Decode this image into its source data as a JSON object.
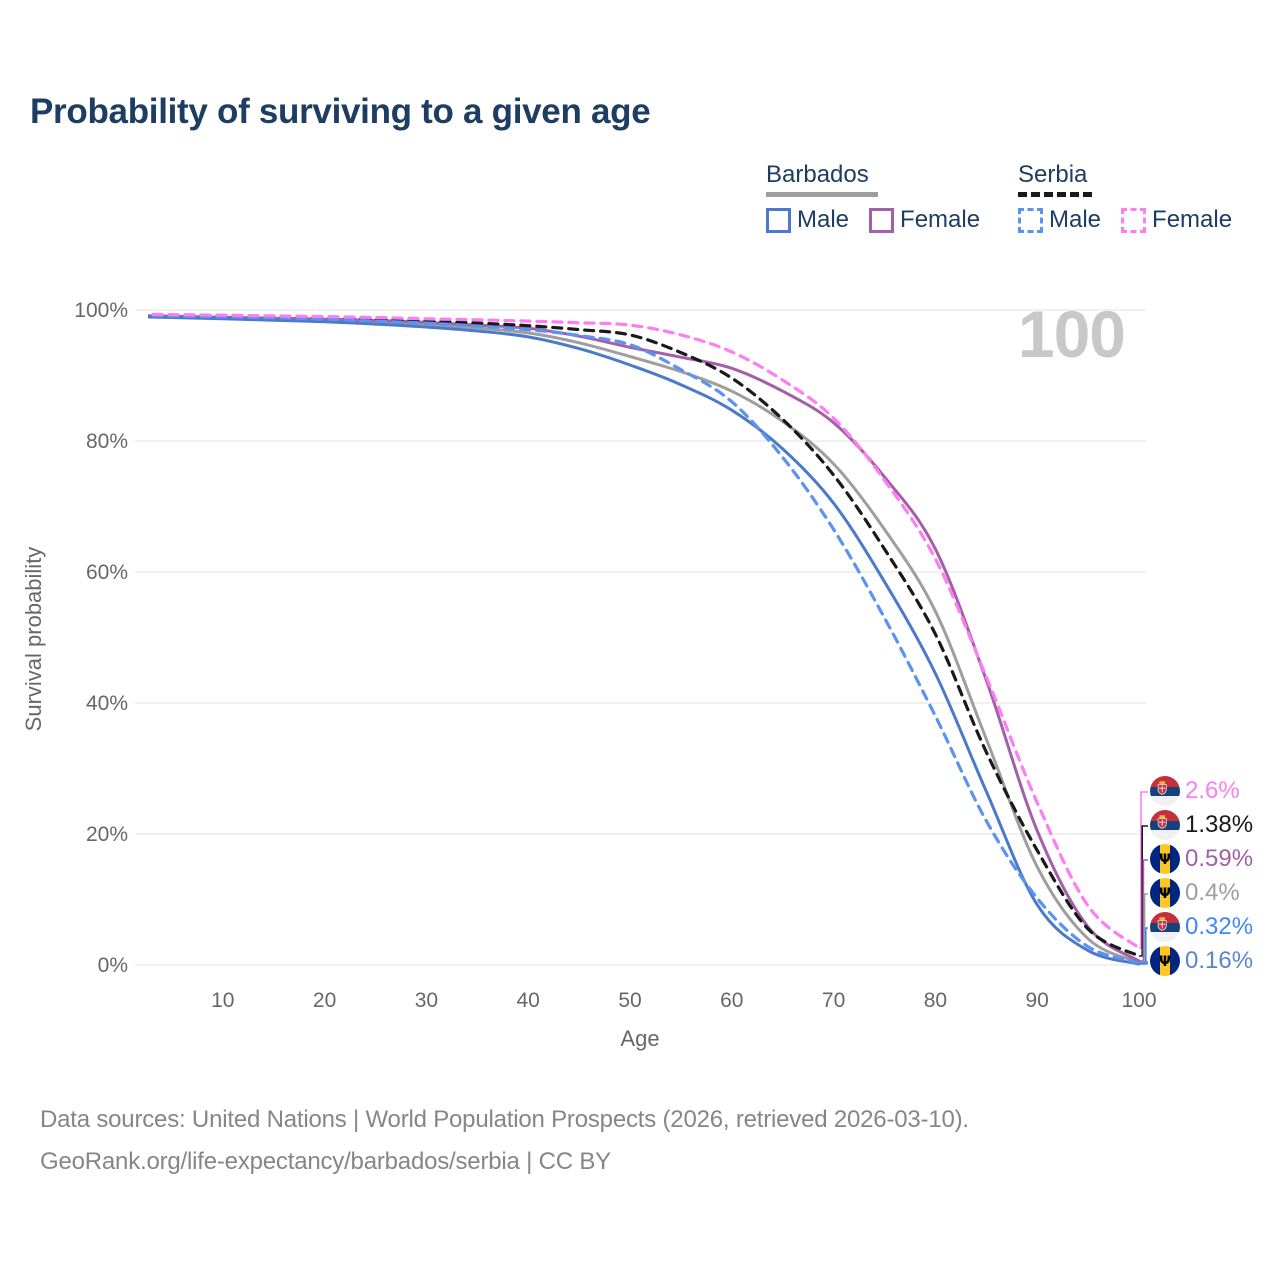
{
  "header": {
    "title": "Probability of surviving to a given age"
  },
  "legend": {
    "groups": [
      {
        "label": "Barbados",
        "line_style": "solid",
        "line_color": "#9e9e9e",
        "items": [
          {
            "label": "Male",
            "color": "#4a7ac9"
          },
          {
            "label": "Female",
            "color": "#a35fa8"
          }
        ]
      },
      {
        "label": "Serbia",
        "line_style": "dashed",
        "line_color": "#1a1a1a",
        "items": [
          {
            "label": "Male",
            "color": "#5c92f2"
          },
          {
            "label": "Female",
            "color": "#ff7df2"
          }
        ]
      }
    ]
  },
  "plot": {
    "age_indicator": "100",
    "ylabel": "Survival probability",
    "xlabel": "Age",
    "y_ticks": [
      "100%",
      "80%",
      "60%",
      "40%",
      "20%",
      "0%"
    ],
    "x_ticks": [
      "10",
      "20",
      "30",
      "40",
      "50",
      "60",
      "70",
      "80",
      "90",
      "100"
    ],
    "grid_color": "#e8e8e8"
  },
  "chart_data": {
    "type": "line",
    "title": "Probability of surviving to a given age",
    "xlabel": "Age",
    "ylabel": "Survival probability",
    "unit": "%",
    "xlim": [
      0,
      100
    ],
    "ylim": [
      0,
      100
    ],
    "grid": true,
    "legend_position": "top-right",
    "series": [
      {
        "id": "barbados_all",
        "name": "Barbados",
        "country": "Barbados",
        "sex": "all",
        "color": "#9e9e9e",
        "dash": false,
        "points": [
          [
            0,
            99.1
          ],
          [
            5,
            98.95
          ],
          [
            10,
            98.78
          ],
          [
            15,
            98.6
          ],
          [
            20,
            98.4
          ],
          [
            25,
            98.1
          ],
          [
            30,
            97.75
          ],
          [
            35,
            97.25
          ],
          [
            40,
            96.5
          ],
          [
            45,
            95.0
          ],
          [
            50,
            92.9
          ],
          [
            55,
            90.6
          ],
          [
            60,
            87.6
          ],
          [
            65,
            83.0
          ],
          [
            70,
            76.5
          ],
          [
            75,
            66.5
          ],
          [
            80,
            54.0
          ],
          [
            85,
            34.5
          ],
          [
            90,
            15.0
          ],
          [
            95,
            4.0
          ],
          [
            100,
            0.4
          ]
        ]
      },
      {
        "id": "barbados_female",
        "name": "Barbados Female",
        "country": "Barbados",
        "sex": "female",
        "color": "#a35fa8",
        "dash": false,
        "points": [
          [
            0,
            99.2
          ],
          [
            5,
            99.05
          ],
          [
            10,
            98.9
          ],
          [
            15,
            98.75
          ],
          [
            20,
            98.6
          ],
          [
            25,
            98.4
          ],
          [
            30,
            98.1
          ],
          [
            35,
            97.7
          ],
          [
            40,
            97.2
          ],
          [
            45,
            96.0
          ],
          [
            50,
            94.3
          ],
          [
            55,
            92.8
          ],
          [
            60,
            91.1
          ],
          [
            65,
            87.6
          ],
          [
            70,
            82.8
          ],
          [
            75,
            74.5
          ],
          [
            80,
            63.5
          ],
          [
            85,
            43.5
          ],
          [
            90,
            20.5
          ],
          [
            95,
            5.8
          ],
          [
            100,
            0.59
          ]
        ]
      },
      {
        "id": "barbados_male",
        "name": "Barbados Male",
        "country": "Barbados",
        "sex": "male",
        "color": "#4a7ac9",
        "dash": false,
        "points": [
          [
            0,
            99.0
          ],
          [
            5,
            98.85
          ],
          [
            10,
            98.65
          ],
          [
            15,
            98.45
          ],
          [
            20,
            98.2
          ],
          [
            25,
            97.85
          ],
          [
            30,
            97.4
          ],
          [
            35,
            96.8
          ],
          [
            40,
            95.9
          ],
          [
            45,
            94.1
          ],
          [
            50,
            91.6
          ],
          [
            55,
            88.6
          ],
          [
            60,
            84.7
          ],
          [
            65,
            78.8
          ],
          [
            70,
            70.5
          ],
          [
            75,
            58.5
          ],
          [
            80,
            44.5
          ],
          [
            85,
            26.5
          ],
          [
            90,
            9.2
          ],
          [
            95,
            2.2
          ],
          [
            100,
            0.16
          ]
        ]
      },
      {
        "id": "serbia_all",
        "name": "Serbia",
        "country": "Serbia",
        "sex": "all",
        "color": "#1a1a1a",
        "dash": true,
        "points": [
          [
            0,
            99.3
          ],
          [
            5,
            99.19
          ],
          [
            10,
            99.07
          ],
          [
            15,
            98.95
          ],
          [
            20,
            98.8
          ],
          [
            25,
            98.6
          ],
          [
            30,
            98.3
          ],
          [
            35,
            98.0
          ],
          [
            40,
            97.6
          ],
          [
            45,
            97.0
          ],
          [
            50,
            96.2
          ],
          [
            55,
            93.5
          ],
          [
            60,
            89.6
          ],
          [
            65,
            83.3
          ],
          [
            70,
            74.8
          ],
          [
            75,
            63.5
          ],
          [
            80,
            50.5
          ],
          [
            85,
            32.5
          ],
          [
            90,
            17.5
          ],
          [
            95,
            5.5
          ],
          [
            100,
            1.38
          ]
        ]
      },
      {
        "id": "serbia_male",
        "name": "Serbia Male",
        "country": "Serbia",
        "sex": "male",
        "color": "#5c92f2",
        "dash": true,
        "points": [
          [
            0,
            99.2
          ],
          [
            5,
            99.08
          ],
          [
            10,
            98.95
          ],
          [
            15,
            98.8
          ],
          [
            20,
            98.6
          ],
          [
            25,
            98.3
          ],
          [
            30,
            98.0
          ],
          [
            35,
            97.55
          ],
          [
            40,
            97.0
          ],
          [
            45,
            96.1
          ],
          [
            50,
            94.7
          ],
          [
            55,
            90.9
          ],
          [
            60,
            86.0
          ],
          [
            65,
            77.5
          ],
          [
            70,
            66.5
          ],
          [
            75,
            53.0
          ],
          [
            80,
            38.0
          ],
          [
            85,
            22.0
          ],
          [
            90,
            10.2
          ],
          [
            95,
            2.8
          ],
          [
            100,
            0.32
          ]
        ]
      },
      {
        "id": "serbia_female",
        "name": "Serbia Female",
        "country": "Serbia",
        "sex": "female",
        "color": "#ff7df2",
        "dash": true,
        "points": [
          [
            0,
            99.4
          ],
          [
            5,
            99.3
          ],
          [
            10,
            99.2
          ],
          [
            15,
            99.1
          ],
          [
            20,
            99.0
          ],
          [
            25,
            98.85
          ],
          [
            30,
            98.65
          ],
          [
            35,
            98.5
          ],
          [
            40,
            98.3
          ],
          [
            45,
            98.05
          ],
          [
            50,
            97.7
          ],
          [
            55,
            96.2
          ],
          [
            60,
            93.6
          ],
          [
            65,
            89.3
          ],
          [
            70,
            83.5
          ],
          [
            75,
            74.0
          ],
          [
            80,
            62.0
          ],
          [
            85,
            44.0
          ],
          [
            90,
            24.8
          ],
          [
            95,
            9.0
          ],
          [
            100,
            2.6
          ]
        ]
      }
    ]
  },
  "end_labels": [
    {
      "value": "2.6%",
      "series": "serbia_female",
      "flag": "serbia",
      "color": "#ff7df2"
    },
    {
      "value": "1.38%",
      "series": "serbia_all",
      "flag": "serbia",
      "color": "#1a1a1a"
    },
    {
      "value": "0.59%",
      "series": "barbados_female",
      "flag": "barbados",
      "color": "#a35fa8"
    },
    {
      "value": "0.4%",
      "series": "barbados_all",
      "flag": "barbados",
      "color": "#9e9e9e"
    },
    {
      "value": "0.32%",
      "series": "serbia_male",
      "flag": "serbia",
      "color": "#4287f5"
    },
    {
      "value": "0.16%",
      "series": "barbados_male",
      "flag": "barbados",
      "color": "#5b84d4"
    }
  ],
  "footer": {
    "line1": "Data sources: United Nations | World Population Prospects (2026, retrieved 2026-03-10).",
    "line2": "GeoRank.org/life-expectancy/barbados/serbia | CC BY"
  }
}
